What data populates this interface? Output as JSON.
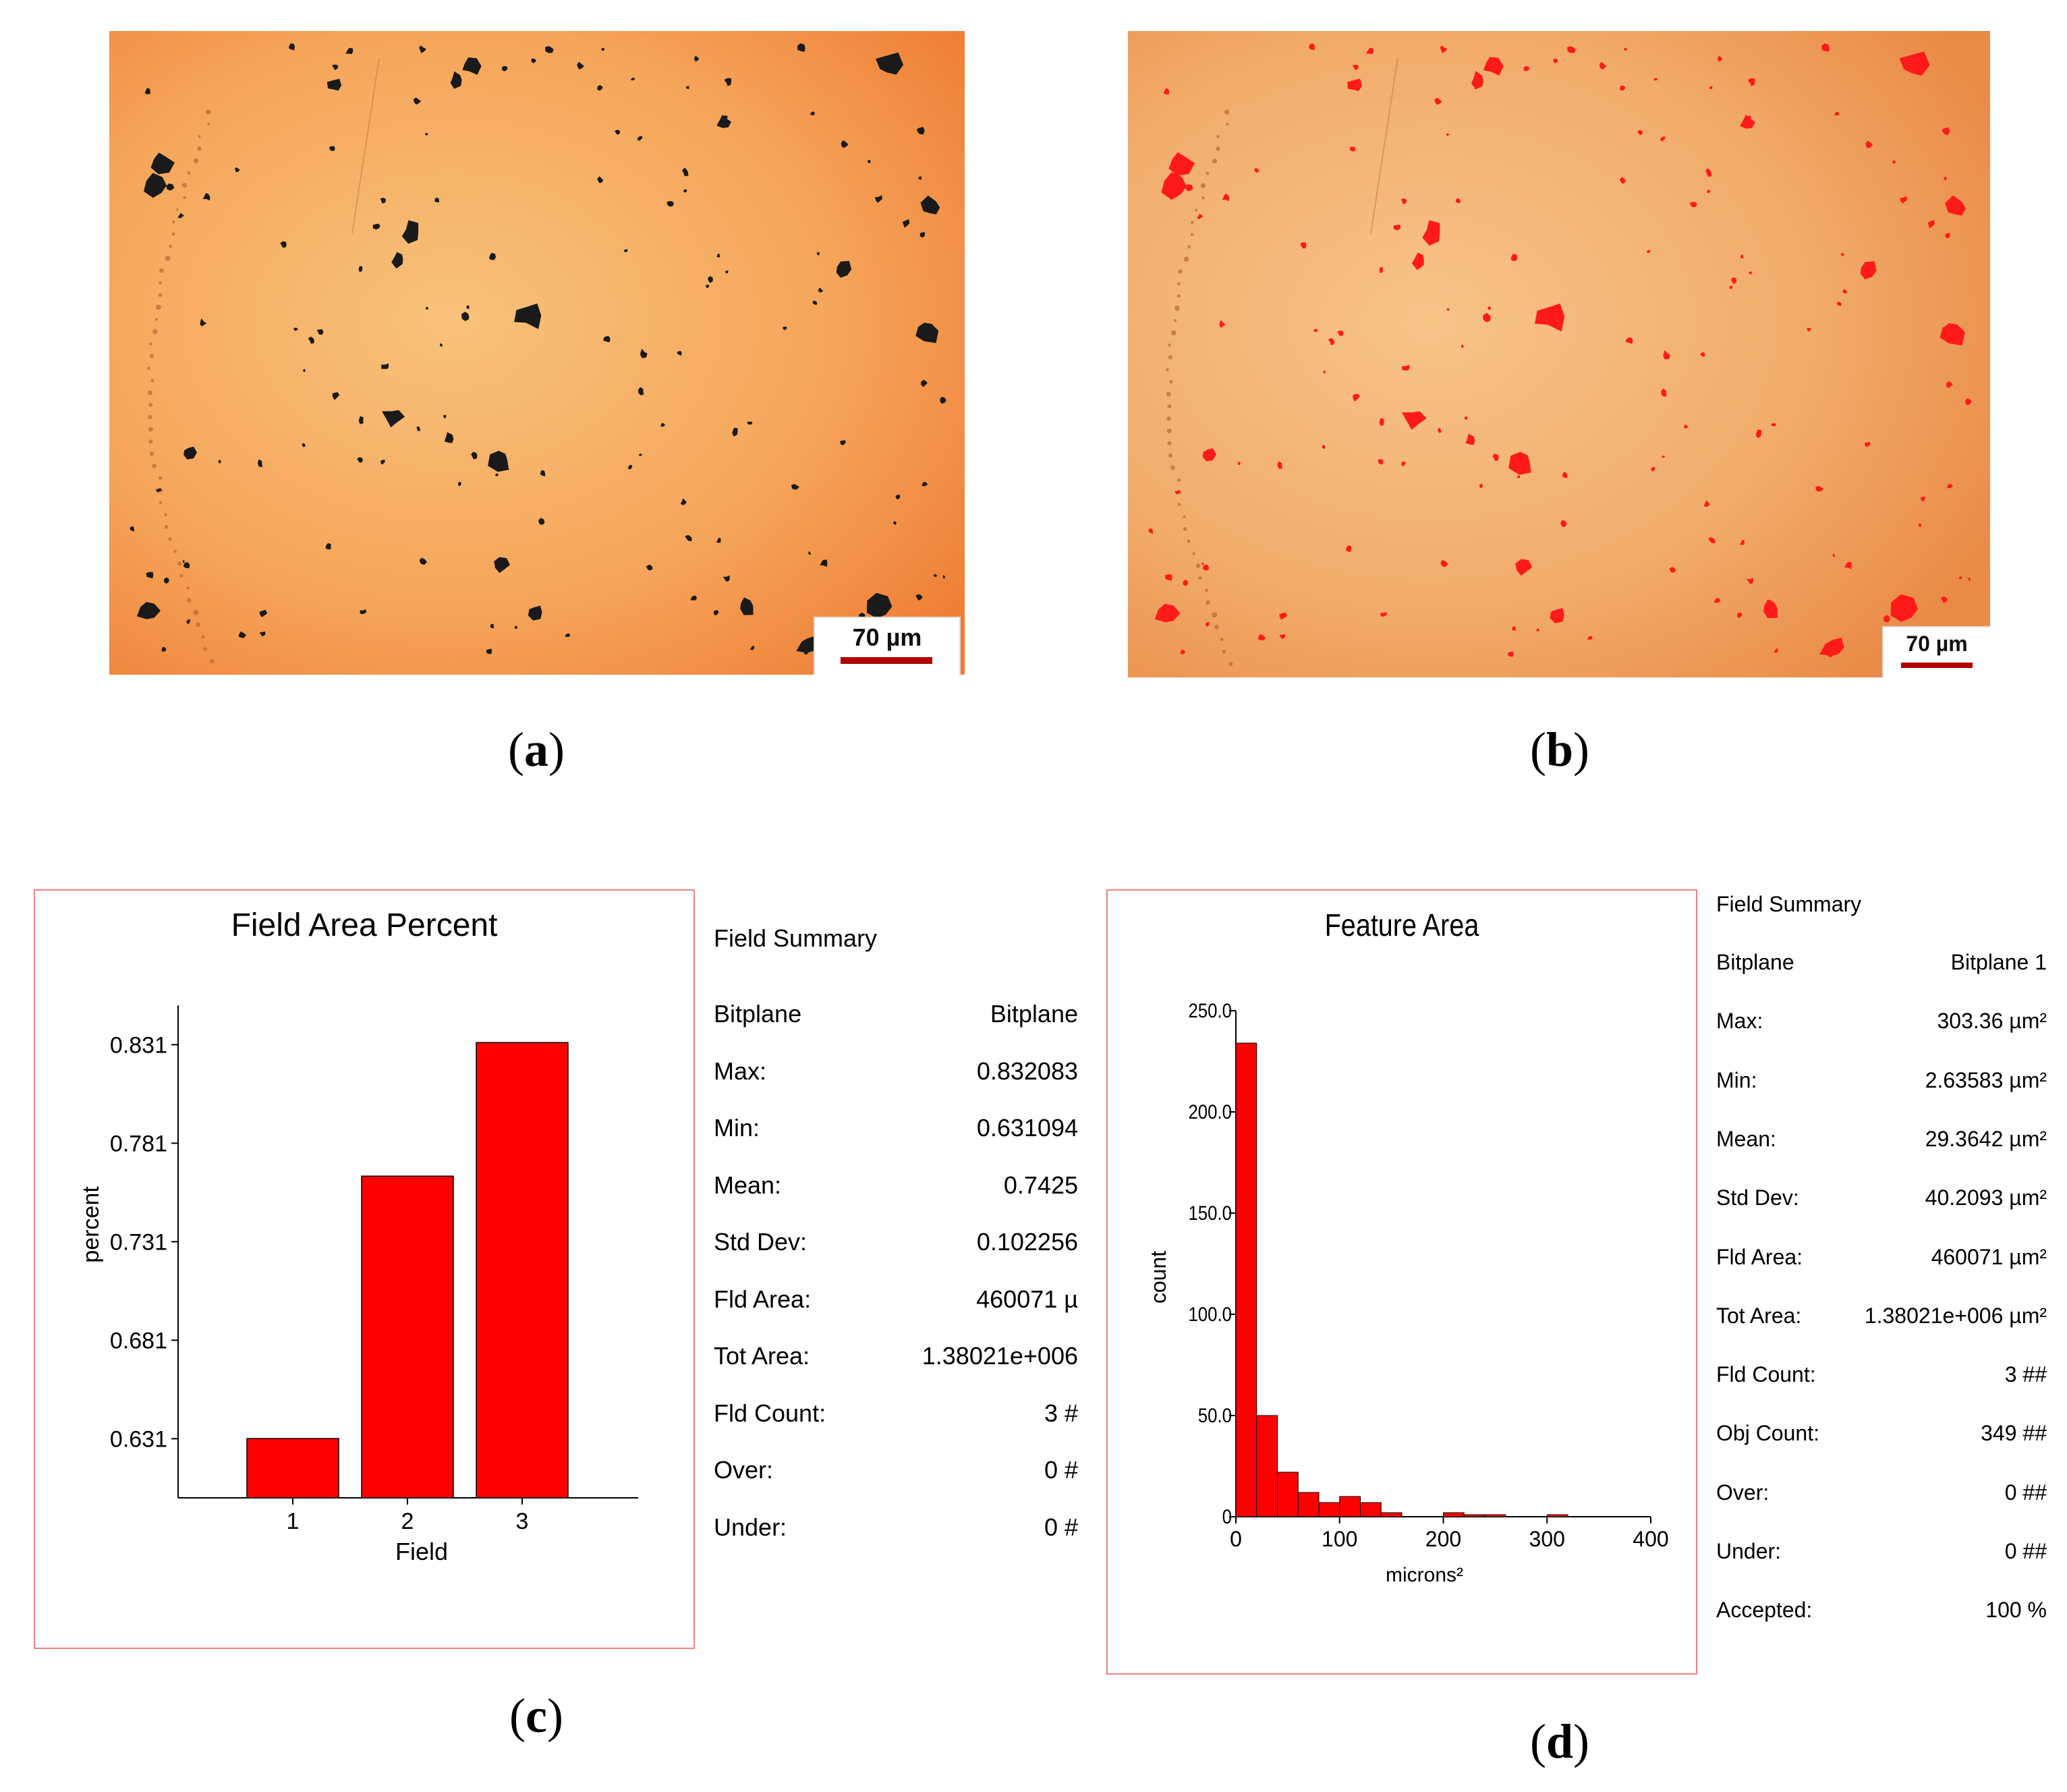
{
  "panels": {
    "a": {
      "label": "a",
      "scale_text": "70 µm"
    },
    "b": {
      "label": "b",
      "scale_text": "70 µm"
    },
    "c": {
      "label": "c"
    },
    "d": {
      "label": "d"
    }
  },
  "colors": {
    "bar": "#ff0000",
    "box_border": "#f08080",
    "micro_base": "#f59a50",
    "inclusion_dark": "#1a1a1a",
    "inclusion_red": "#ff1a1a"
  },
  "chart_data": [
    {
      "type": "bar",
      "title": "Field Area Percent",
      "xlabel": "Field",
      "ylabel": "percent",
      "categories": [
        "1",
        "2",
        "3"
      ],
      "values": [
        0.631094,
        0.7643,
        0.832083
      ],
      "yticks": [
        "0.631",
        "0.681",
        "0.731",
        "0.781",
        "0.831"
      ],
      "ylim": [
        0.601,
        0.851
      ]
    },
    {
      "type": "bar",
      "title": "Feature Area",
      "xlabel": "microns²",
      "ylabel": "count",
      "bin_width": 20,
      "bins": [
        0,
        20,
        40,
        60,
        80,
        100,
        120,
        140,
        160,
        180,
        200,
        220,
        240,
        260,
        280,
        300
      ],
      "values": [
        234,
        50,
        22,
        12,
        7,
        10,
        7,
        2,
        0,
        0,
        2,
        1,
        1,
        0,
        0,
        1
      ],
      "xticks": [
        "0",
        "100",
        "200",
        "300",
        "400"
      ],
      "yticks": [
        "0",
        "50.0",
        "100.0",
        "150.0",
        "200.0",
        "250.0"
      ],
      "xlim": [
        0,
        400
      ],
      "ylim": [
        0,
        250
      ]
    }
  ],
  "summary_c": {
    "title": "Field Summary",
    "rows": [
      {
        "key": "Bitplane",
        "value": "Bitplane"
      },
      {
        "key": "Max:",
        "value": "0.832083"
      },
      {
        "key": "Min:",
        "value": "0.631094"
      },
      {
        "key": "Mean:",
        "value": "0.7425"
      },
      {
        "key": "Std Dev:",
        "value": "0.102256"
      },
      {
        "key": "Fld Area:",
        "value": "460071 µ"
      },
      {
        "key": "Tot Area:",
        "value": "1.38021e+006"
      },
      {
        "key": "Fld Count:",
        "value": "3 #"
      },
      {
        "key": "Over:",
        "value": "0 #"
      },
      {
        "key": "Under:",
        "value": "0 #"
      }
    ]
  },
  "summary_d": {
    "title": "Field Summary",
    "rows": [
      {
        "key": "Bitplane",
        "value": "Bitplane 1"
      },
      {
        "key": "Max:",
        "value": "303.36 µm²"
      },
      {
        "key": "Min:",
        "value": "2.63583 µm²"
      },
      {
        "key": "Mean:",
        "value": "29.3642 µm²"
      },
      {
        "key": "Std Dev:",
        "value": "40.2093 µm²"
      },
      {
        "key": "Fld Area:",
        "value": "460071 µm²"
      },
      {
        "key": "Tot Area:",
        "value": "1.38021e+006 µm²"
      },
      {
        "key": "Fld Count:",
        "value": "3 ##"
      },
      {
        "key": "Obj Count:",
        "value": "349 ##"
      },
      {
        "key": "Over:",
        "value": "0 ##"
      },
      {
        "key": "Under:",
        "value": "0 ##"
      },
      {
        "key": "Accepted:",
        "value": "100 %"
      }
    ]
  }
}
